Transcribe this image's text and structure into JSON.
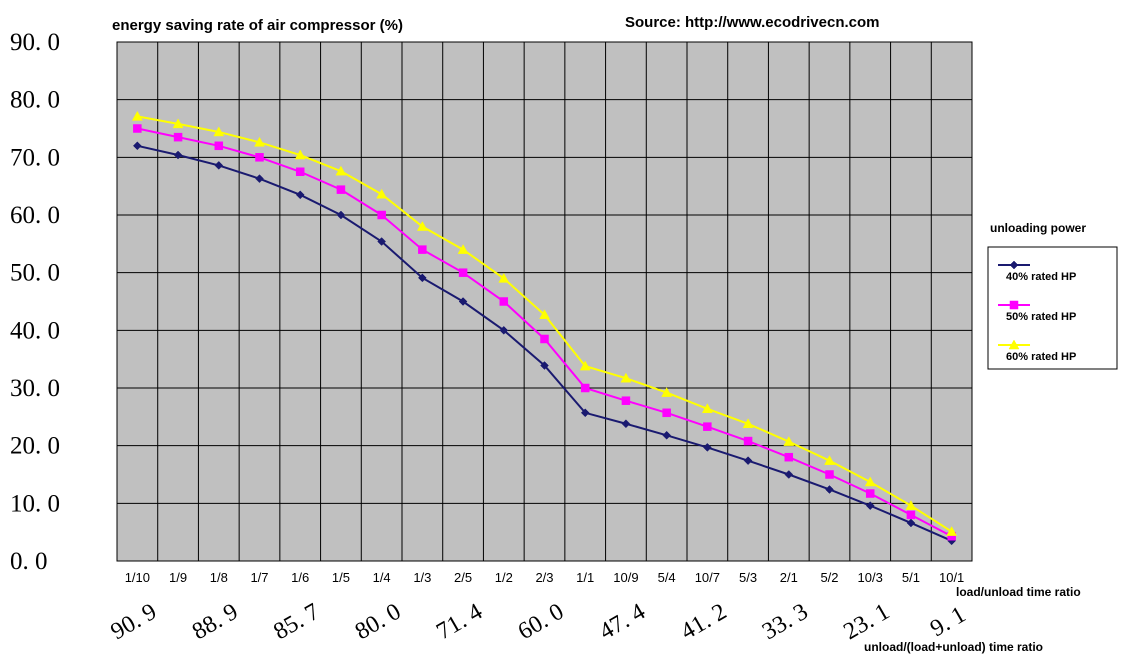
{
  "chart_data": {
    "type": "line",
    "title": "energy saving rate of air compressor (%)",
    "source": "Source: http://www.ecodrivecn.com",
    "categories": [
      "1/10",
      "1/9",
      "1/8",
      "1/7",
      "1/6",
      "1/5",
      "1/4",
      "1/3",
      "2/5",
      "1/2",
      "2/3",
      "1/1",
      "10/9",
      "5/4",
      "10/7",
      "5/3",
      "2/1",
      "5/2",
      "10/3",
      "5/1",
      "10/1"
    ],
    "secondary_categories": [
      "90.9",
      "88.9",
      "85.7",
      "80.0",
      "71.4",
      "60.0",
      "47.4",
      "41.2",
      "33.3",
      "23.1",
      "9.1"
    ],
    "xlabel": "load/unload time ratio",
    "xlabel2": "unload/(load+unload) time ratio",
    "ylim": [
      0,
      90
    ],
    "yticks": [
      "0.0",
      "10.0",
      "20.0",
      "30.0",
      "40.0",
      "50.0",
      "60.0",
      "70.0",
      "80.0",
      "90.0"
    ],
    "grid": true,
    "legend_title": "unloading power",
    "legend_position": "right",
    "series": [
      {
        "name": "40% rated HP",
        "color": "#1a1a70",
        "marker": "diamond",
        "values": [
          72.0,
          70.4,
          68.6,
          66.3,
          63.5,
          60.0,
          55.4,
          49.1,
          45.0,
          40.0,
          33.9,
          25.7,
          23.8,
          21.8,
          19.7,
          17.4,
          15.0,
          12.4,
          9.6,
          6.6,
          3.5
        ]
      },
      {
        "name": "50% rated HP",
        "color": "#ff00ff",
        "marker": "square",
        "values": [
          75.0,
          73.5,
          72.0,
          70.0,
          67.5,
          64.4,
          60.0,
          54.0,
          50.0,
          45.0,
          38.5,
          30.0,
          27.8,
          25.7,
          23.3,
          20.8,
          18.0,
          15.0,
          11.7,
          8.0,
          4.3
        ]
      },
      {
        "name": "60% rated HP",
        "color": "#ffff00",
        "marker": "triangle",
        "values": [
          77.1,
          75.8,
          74.4,
          72.6,
          70.4,
          67.6,
          63.6,
          58.0,
          54.0,
          49.0,
          42.7,
          33.8,
          31.7,
          29.2,
          26.4,
          23.8,
          20.7,
          17.4,
          13.7,
          9.6,
          5.1
        ]
      }
    ]
  }
}
